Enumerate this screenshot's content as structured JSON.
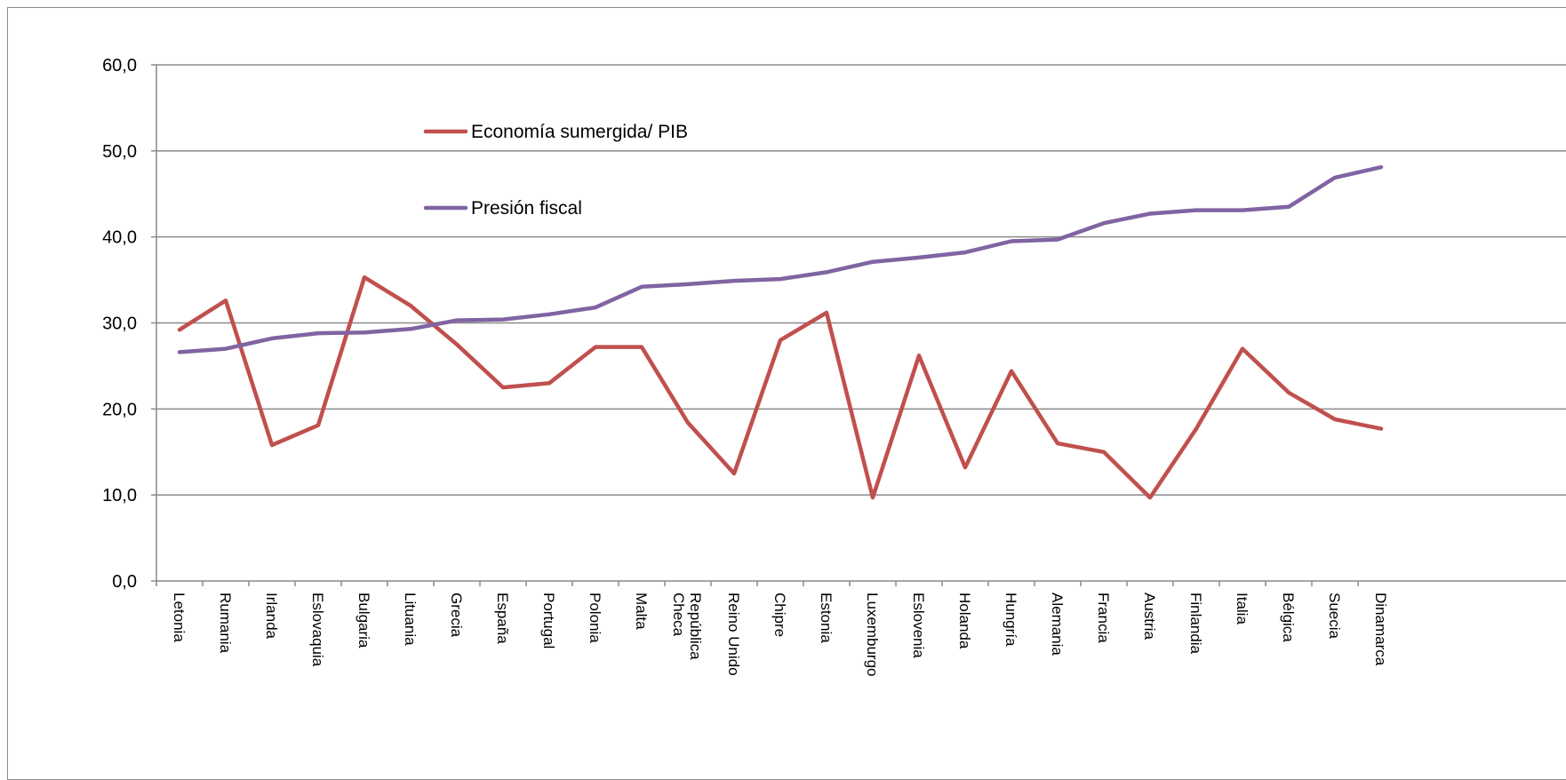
{
  "chart_data": {
    "type": "line",
    "title": "",
    "xlabel": "",
    "ylabel": "",
    "ylim": [
      0,
      60
    ],
    "yticks": [
      "0,0",
      "10,0",
      "20,0",
      "30,0",
      "40,0",
      "50,0",
      "60,0"
    ],
    "grid": true,
    "legend_position": "top-left",
    "categories": [
      "Letonia",
      "Rumania",
      "Irlanda",
      "Eslovaquia",
      "Bulgaria",
      "Lituania",
      "Grecia",
      "España",
      "Portugal",
      "Polonia",
      "Malta",
      "República Checa",
      "Reino Unido",
      "Chipre",
      "Estonia",
      "Luxemburgo",
      "Eslovenia",
      "Holanda",
      "Hungría",
      "Alemania",
      "Francia",
      "Austria",
      "Finlandia",
      "Italia",
      "Bélgica",
      "Suecia",
      "Dinamarca"
    ],
    "series": [
      {
        "name": "Economía sumergida/ PIB",
        "color": "#c0504d",
        "values": [
          29.2,
          32.6,
          15.8,
          18.1,
          35.3,
          32.0,
          27.5,
          22.5,
          23.0,
          27.2,
          27.2,
          18.4,
          12.5,
          28.0,
          31.2,
          9.7,
          26.2,
          13.2,
          24.4,
          16.0,
          15.0,
          9.7,
          17.7,
          27.0,
          21.9,
          18.8,
          17.7
        ]
      },
      {
        "name": "Presión fiscal",
        "color": "#8064a2",
        "values": [
          26.6,
          27.0,
          28.2,
          28.8,
          28.9,
          29.3,
          30.3,
          30.4,
          31.0,
          31.8,
          34.2,
          34.5,
          34.9,
          35.1,
          35.9,
          37.1,
          37.6,
          38.2,
          39.5,
          39.7,
          41.6,
          42.7,
          43.1,
          43.1,
          43.5,
          46.9,
          48.1
        ]
      }
    ]
  }
}
